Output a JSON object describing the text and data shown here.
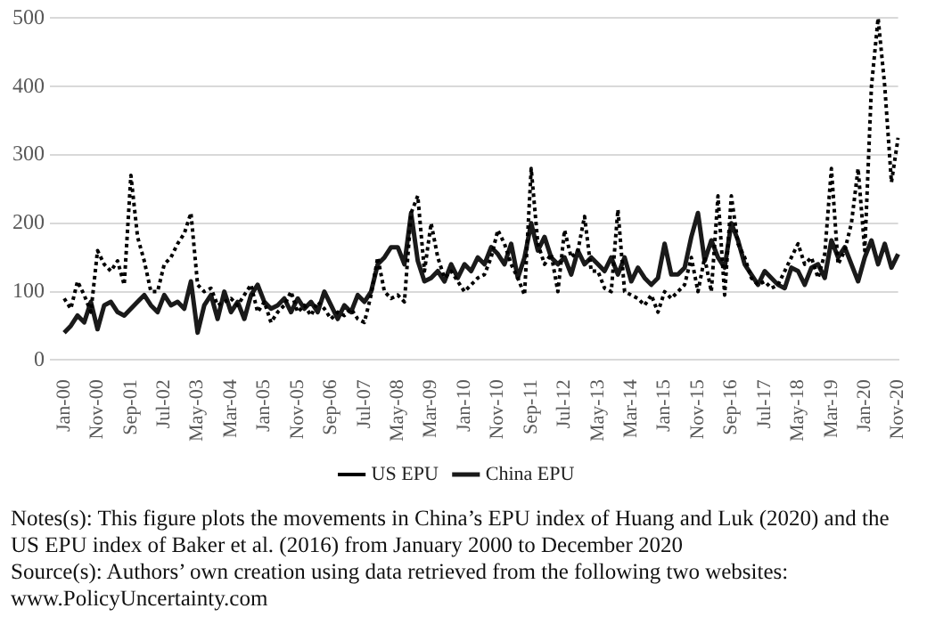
{
  "chart_data": {
    "type": "line",
    "categories": [
      "Jan-00",
      null,
      null,
      null,
      null,
      "Nov-00",
      null,
      null,
      null,
      null,
      "Sep-01",
      null,
      null,
      null,
      null,
      "Jul-02",
      null,
      null,
      null,
      null,
      "May-03",
      null,
      null,
      null,
      null,
      "Mar-04",
      null,
      null,
      null,
      null,
      "Jan-05",
      null,
      null,
      null,
      null,
      "Nov-05",
      null,
      null,
      null,
      null,
      "Sep-06",
      null,
      null,
      null,
      null,
      "Jul-07",
      null,
      null,
      null,
      null,
      "May-08",
      null,
      null,
      null,
      null,
      "Mar-09",
      null,
      null,
      null,
      null,
      "Jan-10",
      null,
      null,
      null,
      null,
      "Nov-10",
      null,
      null,
      null,
      null,
      "Sep-11",
      null,
      null,
      null,
      null,
      "Jul-12",
      null,
      null,
      null,
      null,
      "May-13",
      null,
      null,
      null,
      null,
      "Mar-14",
      null,
      null,
      null,
      null,
      "Jan-15",
      null,
      null,
      null,
      null,
      "Nov-15",
      null,
      null,
      null,
      null,
      "Sep-16",
      null,
      null,
      null,
      null,
      "Jul-17",
      null,
      null,
      null,
      null,
      "May-18",
      null,
      null,
      null,
      null,
      "Mar-19",
      null,
      null,
      null,
      null,
      "Jan-20",
      null,
      null,
      null,
      null,
      "Nov-20"
    ],
    "series": [
      {
        "name": "US EPU",
        "color": "#000000",
        "line_style": "dotted",
        "values": [
          90,
          75,
          115,
          95,
          70,
          160,
          140,
          130,
          145,
          110,
          270,
          180,
          145,
          100,
          100,
          140,
          150,
          170,
          185,
          215,
          110,
          100,
          105,
          80,
          85,
          90,
          80,
          95,
          110,
          70,
          85,
          55,
          70,
          80,
          100,
          70,
          80,
          65,
          85,
          75,
          60,
          70,
          65,
          75,
          60,
          55,
          95,
          150,
          100,
          90,
          95,
          85,
          215,
          240,
          130,
          200,
          150,
          120,
          130,
          115,
          100,
          110,
          120,
          125,
          150,
          190,
          170,
          140,
          120,
          95,
          280,
          170,
          140,
          155,
          100,
          190,
          150,
          160,
          210,
          130,
          130,
          105,
          100,
          220,
          100,
          95,
          90,
          80,
          95,
          70,
          100,
          90,
          100,
          110,
          150,
          100,
          150,
          100,
          240,
          95,
          240,
          170,
          150,
          120,
          110,
          115,
          105,
          110,
          130,
          150,
          170,
          140,
          150,
          120,
          155,
          280,
          140,
          160,
          200,
          280,
          160,
          400,
          500,
          400,
          260,
          325
        ]
      },
      {
        "name": "China EPU",
        "color": "#1a1a1a",
        "line_style": "solid",
        "values": [
          40,
          50,
          65,
          55,
          85,
          45,
          80,
          85,
          70,
          65,
          75,
          85,
          95,
          80,
          70,
          95,
          80,
          85,
          75,
          115,
          40,
          80,
          95,
          60,
          100,
          70,
          85,
          60,
          95,
          110,
          85,
          75,
          80,
          90,
          70,
          90,
          75,
          85,
          70,
          100,
          80,
          60,
          80,
          70,
          95,
          85,
          100,
          140,
          150,
          165,
          165,
          140,
          215,
          145,
          115,
          120,
          130,
          115,
          140,
          120,
          140,
          130,
          150,
          140,
          165,
          155,
          140,
          170,
          120,
          150,
          200,
          160,
          180,
          150,
          140,
          150,
          125,
          160,
          140,
          150,
          140,
          130,
          150,
          125,
          150,
          115,
          135,
          120,
          110,
          120,
          170,
          125,
          125,
          135,
          180,
          215,
          145,
          175,
          150,
          135,
          200,
          175,
          140,
          125,
          110,
          130,
          120,
          110,
          105,
          135,
          130,
          110,
          135,
          140,
          120,
          175,
          150,
          165,
          140,
          115,
          150,
          175,
          140,
          170,
          135,
          155
        ]
      }
    ],
    "ylim": [
      0,
      500
    ],
    "yticks": [
      0,
      100,
      200,
      300,
      400,
      500
    ],
    "grid": "y",
    "legend": "bottom",
    "marker": "none",
    "annotations": [
      "Notes(s): This figure plots the movements in China’s EPU index of Huang and Luk (2020) and the US EPU index of Baker et al. (2016) from January 2000 to December 2020",
      "Source(s): Authors’ own creation using data retrieved from the following two websites: www.PolicyUncertainty.com"
    ]
  }
}
